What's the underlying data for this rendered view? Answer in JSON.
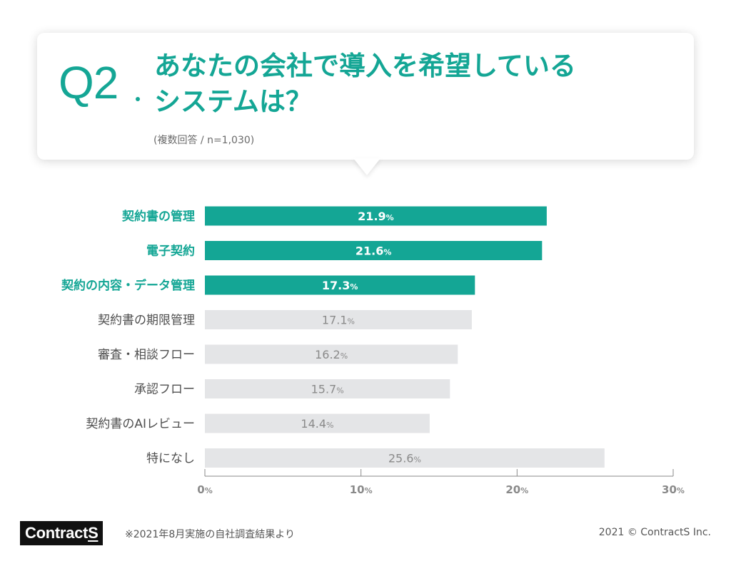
{
  "question": {
    "number": "Q2",
    "title_line1": "あなたの会社で導入を希望している",
    "title_line2": "システムは？",
    "subtitle": "(複数回答 / n=1,030)"
  },
  "colors": {
    "accent": "#14a695",
    "bar_muted": "#e4e5e7",
    "text_dark": "#4f4f4f",
    "text_muted": "#8a8a8a"
  },
  "chart_data": {
    "type": "bar",
    "orientation": "horizontal",
    "categories": [
      "契約書の管理",
      "電子契約",
      "契約の内容・データ管理",
      "契約書の期限管理",
      "審査・相談フロー",
      "承認フロー",
      "契約書のAIレビュー",
      "特になし"
    ],
    "values": [
      21.9,
      21.6,
      17.3,
      17.1,
      16.2,
      15.7,
      14.4,
      25.6
    ],
    "value_labels": [
      "21.9",
      "21.6",
      "17.3",
      "17.1",
      "16.2",
      "15.7",
      "14.4",
      "25.6"
    ],
    "highlighted": [
      true,
      true,
      true,
      false,
      false,
      false,
      false,
      false
    ],
    "unit": "%",
    "xlim": [
      0,
      30
    ],
    "xticks": [
      0,
      10,
      20,
      30
    ],
    "xtick_labels": [
      "0",
      "10",
      "20",
      "30"
    ],
    "grid": false
  },
  "footer": {
    "logo_text_main": "Contract",
    "logo_text_end": "S",
    "note": "※2021年8月実施の自社調査結果より",
    "copyright": "2021 © ContractS Inc."
  }
}
